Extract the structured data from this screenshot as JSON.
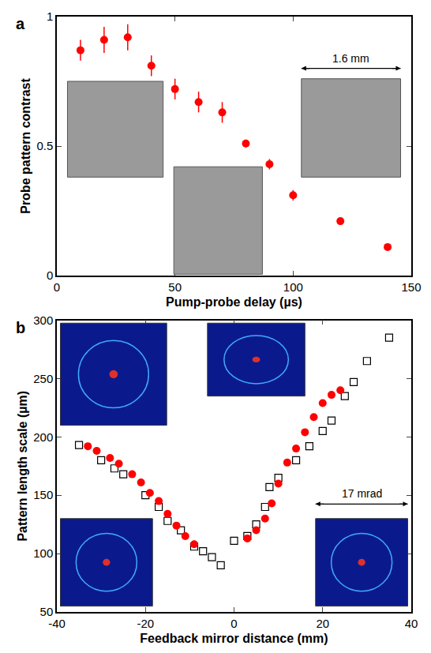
{
  "chart_data": [
    {
      "panel": "a",
      "type": "scatter",
      "x_label": "Pump-probe delay (µs)",
      "y_label": "Probe pattern contrast",
      "x": [
        10,
        20,
        30,
        40,
        50,
        60,
        70,
        80,
        90,
        100,
        120,
        140
      ],
      "series": [
        {
          "color": "#ff0000",
          "marker": "circle",
          "values": [
            0.87,
            0.91,
            0.92,
            0.81,
            0.72,
            0.67,
            0.63,
            0.51,
            0.43,
            0.31,
            0.21,
            0.11
          ],
          "errors": [
            0.04,
            0.05,
            0.05,
            0.04,
            0.04,
            0.04,
            0.04,
            0.015,
            0.02,
            0.02,
            0.01,
            0.01
          ]
        }
      ],
      "xlim": [
        0,
        150
      ],
      "xticks": [
        0,
        50,
        100,
        150
      ],
      "ylim": [
        0,
        1
      ],
      "yticks": [
        0,
        0.5,
        1
      ],
      "annotations": [
        "1.6 mm"
      ]
    },
    {
      "panel": "b",
      "type": "scatter",
      "x_label": "Feedback mirror distance (mm)",
      "y_label": "Pattern length scale (µm)",
      "series": [
        {
          "color": "#000000",
          "marker": "open square",
          "x": [
            -35,
            -30,
            -27,
            -25,
            -20,
            -17,
            -15,
            -12,
            -9,
            -7,
            -5,
            -3,
            0,
            3,
            5,
            7,
            8,
            10,
            14,
            17,
            20,
            22,
            25,
            27,
            30,
            35
          ],
          "values": [
            193,
            180,
            173,
            168,
            150,
            140,
            128,
            120,
            106,
            102,
            97,
            90,
            111,
            115,
            125,
            140,
            157,
            165,
            180,
            192,
            205,
            214,
            235,
            247,
            265,
            285
          ]
        },
        {
          "color": "#ff0000",
          "marker": "circle",
          "x": [
            -33,
            -31,
            -28,
            -26,
            -23,
            -21,
            -19,
            -17,
            -15,
            -13,
            -11,
            -9,
            3,
            5,
            7,
            8.5,
            10,
            12,
            14,
            16,
            18,
            20,
            22,
            24
          ],
          "values": [
            192,
            188,
            182,
            177,
            168,
            161,
            152,
            145,
            134,
            124,
            115,
            108,
            113,
            120,
            130,
            143,
            160,
            178,
            190,
            204,
            217,
            229,
            236,
            240
          ]
        }
      ],
      "xlim": [
        -40,
        40
      ],
      "xticks": [
        -40,
        -20,
        0,
        20,
        40
      ],
      "ylim": [
        50,
        300
      ],
      "yticks": [
        50,
        100,
        150,
        200,
        250,
        300
      ],
      "annotations": [
        "17 mrad"
      ]
    }
  ]
}
